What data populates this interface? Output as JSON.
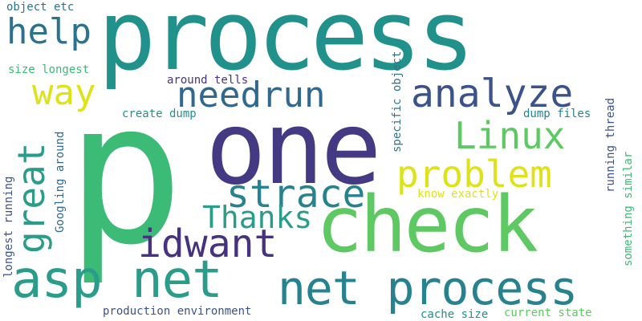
{
  "words": {
    "process_big": {
      "text": "process",
      "color": "#21918c"
    },
    "p": {
      "text": "p",
      "color": "#3bbb75"
    },
    "one": {
      "text": "one",
      "color": "#443983"
    },
    "check": {
      "text": "check",
      "color": "#5ec962"
    },
    "asp_net": {
      "text": "asp net",
      "color": "#2a9d8a"
    },
    "net_process": {
      "text": "net process",
      "color": "#26828e"
    },
    "help": {
      "text": "help",
      "color": "#2c728e"
    },
    "way": {
      "text": "way",
      "color": "#dde318"
    },
    "needrun": {
      "text": "needrun",
      "color": "#31688e"
    },
    "analyze": {
      "text": "analyze",
      "color": "#3b528b"
    },
    "linux": {
      "text": "Linux",
      "color": "#5ec962"
    },
    "problem": {
      "text": "problem",
      "color": "#dde318"
    },
    "strace": {
      "text": "strace",
      "color": "#26828e"
    },
    "thanks": {
      "text": "Thanks",
      "color": "#2a9d8a"
    },
    "idwant": {
      "text": "idwant",
      "color": "#46327e"
    },
    "great": {
      "text": "great",
      "color": "#2a9d8a"
    },
    "object_etc": {
      "text": "object etc",
      "color": "#2c728e"
    },
    "size_longest": {
      "text": "size longest",
      "color": "#3bbb75"
    },
    "around_tells": {
      "text": "around tells",
      "color": "#46327e"
    },
    "create_dump": {
      "text": "create dump",
      "color": "#21918c"
    },
    "dump_files": {
      "text": "dump files",
      "color": "#26828e"
    },
    "specific_object": {
      "text": "specific object",
      "color": "#2c728e"
    },
    "running_thread": {
      "text": "running thread",
      "color": "#3b528b"
    },
    "something_similar": {
      "text": "something similar",
      "color": "#3bbb75"
    },
    "know_exactly": {
      "text": "know exactly",
      "color": "#dde318"
    },
    "googling_around": {
      "text": "Googling around",
      "color": "#31688e"
    },
    "longest_running": {
      "text": "longest running",
      "color": "#3b528b"
    },
    "production_environment": {
      "text": "production environment",
      "color": "#3b528b"
    },
    "cache_size": {
      "text": "cache size",
      "color": "#21918c"
    },
    "current_state": {
      "text": "current state",
      "color": "#5ec962"
    }
  }
}
